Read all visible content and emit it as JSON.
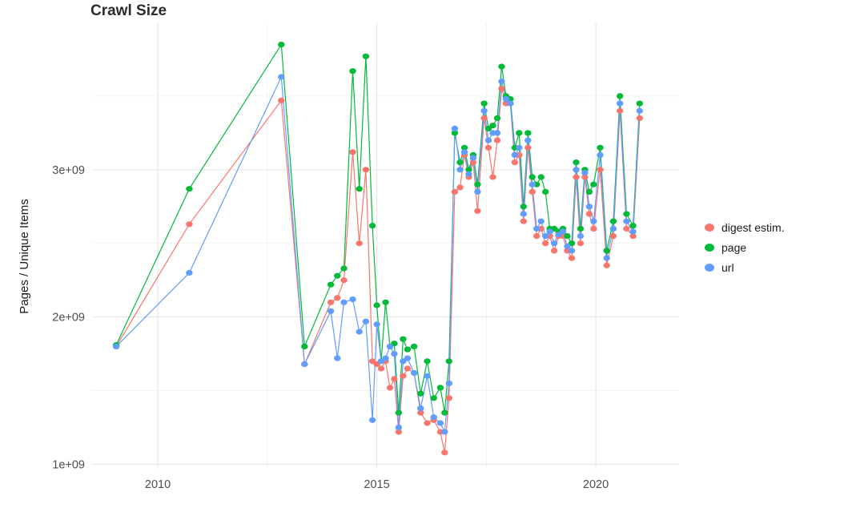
{
  "chart_data": {
    "type": "line",
    "title": "Crawl Size",
    "xlabel": "",
    "ylabel": "Pages / Unique Items",
    "grid": true,
    "legend_position": "right",
    "xlim": [
      2008.5,
      2021.9
    ],
    "ylim": [
      970000000,
      4000000000
    ],
    "x_ticks": [
      {
        "value": 2010,
        "label": "2010"
      },
      {
        "value": 2015,
        "label": "2015"
      },
      {
        "value": 2020,
        "label": "2020"
      }
    ],
    "y_ticks": [
      {
        "value": 1000000000.0,
        "label": "1e+09"
      },
      {
        "value": 2000000000.0,
        "label": "2e+09"
      },
      {
        "value": 3000000000.0,
        "label": "3e+09"
      }
    ],
    "x_minor": [
      2012.5,
      2017.5
    ],
    "y_minor": [
      1500000000.0,
      2500000000.0,
      3500000000.0
    ],
    "series": [
      {
        "name": "digest estim.",
        "color": "#F8766D",
        "points": [
          [
            2009.05,
            1800000000.0
          ],
          [
            2010.72,
            2630000000.0
          ],
          [
            2012.82,
            3470000000.0
          ],
          [
            2013.35,
            1680000000.0
          ],
          [
            2013.95,
            2100000000.0
          ],
          [
            2014.1,
            2130000000.0
          ],
          [
            2014.25,
            2250000000.0
          ],
          [
            2014.45,
            3120000000.0
          ],
          [
            2014.6,
            2500000000.0
          ],
          [
            2014.75,
            3000000000.0
          ],
          [
            2014.9,
            1700000000.0
          ],
          [
            2015.0,
            1680000000.0
          ],
          [
            2015.1,
            1650000000.0
          ],
          [
            2015.2,
            1700000000.0
          ],
          [
            2015.3,
            1520000000.0
          ],
          [
            2015.4,
            1580000000.0
          ],
          [
            2015.5,
            1220000000.0
          ],
          [
            2015.6,
            1600000000.0
          ],
          [
            2015.7,
            1650000000.0
          ],
          [
            2015.85,
            1620000000.0
          ],
          [
            2016.0,
            1350000000.0
          ],
          [
            2016.15,
            1280000000.0
          ],
          [
            2016.3,
            1300000000.0
          ],
          [
            2016.45,
            1220000000.0
          ],
          [
            2016.55,
            1080000000.0
          ],
          [
            2016.65,
            1450000000.0
          ],
          [
            2016.78,
            2850000000.0
          ],
          [
            2016.9,
            2880000000.0
          ],
          [
            2017.0,
            3100000000.0
          ],
          [
            2017.1,
            2950000000.0
          ],
          [
            2017.2,
            3050000000.0
          ],
          [
            2017.3,
            2720000000.0
          ],
          [
            2017.45,
            3350000000.0
          ],
          [
            2017.55,
            3150000000.0
          ],
          [
            2017.65,
            2950000000.0
          ],
          [
            2017.75,
            3200000000.0
          ],
          [
            2017.85,
            3550000000.0
          ],
          [
            2017.95,
            3450000000.0
          ],
          [
            2018.05,
            3450000000.0
          ],
          [
            2018.15,
            3050000000.0
          ],
          [
            2018.25,
            3100000000.0
          ],
          [
            2018.35,
            2650000000.0
          ],
          [
            2018.45,
            3150000000.0
          ],
          [
            2018.55,
            2850000000.0
          ],
          [
            2018.65,
            2550000000.0
          ],
          [
            2018.75,
            2600000000.0
          ],
          [
            2018.85,
            2500000000.0
          ],
          [
            2018.95,
            2550000000.0
          ],
          [
            2019.05,
            2450000000.0
          ],
          [
            2019.15,
            2550000000.0
          ],
          [
            2019.25,
            2550000000.0
          ],
          [
            2019.35,
            2450000000.0
          ],
          [
            2019.45,
            2400000000.0
          ],
          [
            2019.55,
            2950000000.0
          ],
          [
            2019.65,
            2500000000.0
          ],
          [
            2019.75,
            2950000000.0
          ],
          [
            2019.85,
            2700000000.0
          ],
          [
            2019.95,
            2600000000.0
          ],
          [
            2020.1,
            3000000000.0
          ],
          [
            2020.25,
            2350000000.0
          ],
          [
            2020.4,
            2550000000.0
          ],
          [
            2020.55,
            3400000000.0
          ],
          [
            2020.7,
            2600000000.0
          ],
          [
            2020.85,
            2550000000.0
          ],
          [
            2021.0,
            3350000000.0
          ]
        ]
      },
      {
        "name": "page",
        "color": "#00BA38",
        "points": [
          [
            2009.05,
            1810000000.0
          ],
          [
            2010.72,
            2870000000.0
          ],
          [
            2012.82,
            3850000000.0
          ],
          [
            2013.35,
            1800000000.0
          ],
          [
            2013.95,
            2220000000.0
          ],
          [
            2014.1,
            2280000000.0
          ],
          [
            2014.25,
            2330000000.0
          ],
          [
            2014.45,
            3670000000.0
          ],
          [
            2014.6,
            2870000000.0
          ],
          [
            2014.75,
            3770000000.0
          ],
          [
            2014.9,
            2620000000.0
          ],
          [
            2015.0,
            2080000000.0
          ],
          [
            2015.1,
            1700000000.0
          ],
          [
            2015.2,
            2100000000.0
          ],
          [
            2015.3,
            1800000000.0
          ],
          [
            2015.4,
            1820000000.0
          ],
          [
            2015.5,
            1350000000.0
          ],
          [
            2015.6,
            1850000000.0
          ],
          [
            2015.7,
            1780000000.0
          ],
          [
            2015.85,
            1800000000.0
          ],
          [
            2016.0,
            1480000000.0
          ],
          [
            2016.15,
            1700000000.0
          ],
          [
            2016.3,
            1450000000.0
          ],
          [
            2016.45,
            1520000000.0
          ],
          [
            2016.55,
            1350000000.0
          ],
          [
            2016.65,
            1700000000.0
          ],
          [
            2016.78,
            3250000000.0
          ],
          [
            2016.9,
            3050000000.0
          ],
          [
            2017.0,
            3150000000.0
          ],
          [
            2017.1,
            3000000000.0
          ],
          [
            2017.2,
            3100000000.0
          ],
          [
            2017.3,
            2900000000.0
          ],
          [
            2017.45,
            3450000000.0
          ],
          [
            2017.55,
            3280000000.0
          ],
          [
            2017.65,
            3300000000.0
          ],
          [
            2017.75,
            3350000000.0
          ],
          [
            2017.85,
            3700000000.0
          ],
          [
            2017.95,
            3500000000.0
          ],
          [
            2018.05,
            3480000000.0
          ],
          [
            2018.15,
            3150000000.0
          ],
          [
            2018.25,
            3250000000.0
          ],
          [
            2018.35,
            2750000000.0
          ],
          [
            2018.45,
            3250000000.0
          ],
          [
            2018.55,
            2950000000.0
          ],
          [
            2018.65,
            2900000000.0
          ],
          [
            2018.75,
            2950000000.0
          ],
          [
            2018.85,
            2850000000.0
          ],
          [
            2018.95,
            2600000000.0
          ],
          [
            2019.05,
            2600000000.0
          ],
          [
            2019.15,
            2580000000.0
          ],
          [
            2019.25,
            2600000000.0
          ],
          [
            2019.35,
            2550000000.0
          ],
          [
            2019.45,
            2500000000.0
          ],
          [
            2019.55,
            3050000000.0
          ],
          [
            2019.65,
            2600000000.0
          ],
          [
            2019.75,
            3000000000.0
          ],
          [
            2019.85,
            2850000000.0
          ],
          [
            2019.95,
            2900000000.0
          ],
          [
            2020.1,
            3150000000.0
          ],
          [
            2020.25,
            2450000000.0
          ],
          [
            2020.4,
            2650000000.0
          ],
          [
            2020.55,
            3500000000.0
          ],
          [
            2020.7,
            2700000000.0
          ],
          [
            2020.85,
            2620000000.0
          ],
          [
            2021.0,
            3450000000.0
          ]
        ]
      },
      {
        "name": "url",
        "color": "#619CFF",
        "points": [
          [
            2009.05,
            1800000000.0
          ],
          [
            2010.72,
            2300000000.0
          ],
          [
            2012.82,
            3630000000.0
          ],
          [
            2013.35,
            1680000000.0
          ],
          [
            2013.95,
            2040000000.0
          ],
          [
            2014.1,
            1720000000.0
          ],
          [
            2014.25,
            2100000000.0
          ],
          [
            2014.45,
            2120000000.0
          ],
          [
            2014.6,
            1900000000.0
          ],
          [
            2014.75,
            1970000000.0
          ],
          [
            2014.9,
            1300000000.0
          ],
          [
            2015.0,
            1950000000.0
          ],
          [
            2015.1,
            1700000000.0
          ],
          [
            2015.2,
            1720000000.0
          ],
          [
            2015.3,
            1800000000.0
          ],
          [
            2015.4,
            1750000000.0
          ],
          [
            2015.5,
            1250000000.0
          ],
          [
            2015.6,
            1700000000.0
          ],
          [
            2015.7,
            1720000000.0
          ],
          [
            2015.85,
            1620000000.0
          ],
          [
            2016.0,
            1380000000.0
          ],
          [
            2016.15,
            1600000000.0
          ],
          [
            2016.3,
            1320000000.0
          ],
          [
            2016.45,
            1280000000.0
          ],
          [
            2016.55,
            1220000000.0
          ],
          [
            2016.65,
            1550000000.0
          ],
          [
            2016.78,
            3280000000.0
          ],
          [
            2016.9,
            3000000000.0
          ],
          [
            2017.0,
            3120000000.0
          ],
          [
            2017.1,
            2970000000.0
          ],
          [
            2017.2,
            3080000000.0
          ],
          [
            2017.3,
            2850000000.0
          ],
          [
            2017.45,
            3400000000.0
          ],
          [
            2017.55,
            3200000000.0
          ],
          [
            2017.65,
            3250000000.0
          ],
          [
            2017.75,
            3250000000.0
          ],
          [
            2017.85,
            3600000000.0
          ],
          [
            2017.95,
            3480000000.0
          ],
          [
            2018.05,
            3450000000.0
          ],
          [
            2018.15,
            3100000000.0
          ],
          [
            2018.25,
            3150000000.0
          ],
          [
            2018.35,
            2700000000.0
          ],
          [
            2018.45,
            3200000000.0
          ],
          [
            2018.55,
            2900000000.0
          ],
          [
            2018.65,
            2600000000.0
          ],
          [
            2018.75,
            2650000000.0
          ],
          [
            2018.85,
            2550000000.0
          ],
          [
            2018.95,
            2580000000.0
          ],
          [
            2019.05,
            2500000000.0
          ],
          [
            2019.15,
            2560000000.0
          ],
          [
            2019.25,
            2580000000.0
          ],
          [
            2019.35,
            2480000000.0
          ],
          [
            2019.45,
            2450000000.0
          ],
          [
            2019.55,
            3000000000.0
          ],
          [
            2019.65,
            2550000000.0
          ],
          [
            2019.75,
            2980000000.0
          ],
          [
            2019.85,
            2750000000.0
          ],
          [
            2019.95,
            2650000000.0
          ],
          [
            2020.1,
            3100000000.0
          ],
          [
            2020.25,
            2400000000.0
          ],
          [
            2020.4,
            2600000000.0
          ],
          [
            2020.55,
            3450000000.0
          ],
          [
            2020.7,
            2650000000.0
          ],
          [
            2020.85,
            2580000000.0
          ],
          [
            2021.0,
            3400000000.0
          ]
        ]
      }
    ]
  }
}
